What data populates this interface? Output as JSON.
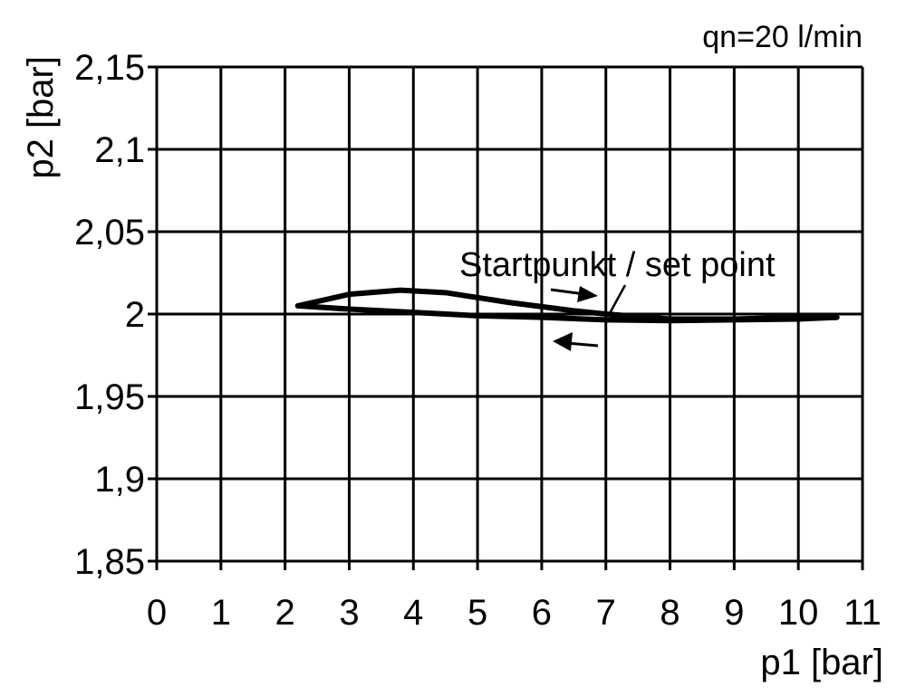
{
  "chart_data": {
    "type": "line",
    "annotation_top": "qn=20 l/min",
    "xlabel": "p1 [bar]",
    "ylabel": "p2 [bar]",
    "xlim": [
      0,
      11
    ],
    "ylim": [
      1.85,
      2.15
    ],
    "xticks": [
      0,
      1,
      2,
      3,
      4,
      5,
      6,
      7,
      8,
      9,
      10,
      11
    ],
    "xtick_labels": [
      "0",
      "1",
      "2",
      "3",
      "4",
      "5",
      "6",
      "7",
      "8",
      "9",
      "10",
      "11"
    ],
    "yticks": [
      1.85,
      1.9,
      1.95,
      2.0,
      2.05,
      2.1,
      2.15
    ],
    "ytick_labels": [
      "1,85",
      "1,9",
      "1,95",
      "2",
      "2,05",
      "2,1",
      "2,15"
    ],
    "grid": true,
    "set_point_label": "Startpunkt / set point",
    "set_point": [
      7,
      2.0
    ],
    "series": [
      {
        "direction": "increasing",
        "x": [
          2.2,
          3.0,
          3.8,
          4.5,
          5.5,
          6.5,
          7.0,
          8.0,
          9.0,
          10.0,
          10.6
        ],
        "y": [
          2.005,
          2.012,
          2.0145,
          2.013,
          2.007,
          2.002,
          2.0,
          1.997,
          1.997,
          1.998,
          1.998
        ]
      },
      {
        "direction": "decreasing",
        "x": [
          10.6,
          10.0,
          9.0,
          8.0,
          7.0,
          6.0,
          5.0,
          4.0,
          3.0,
          2.2
        ],
        "y": [
          1.998,
          1.997,
          1.9965,
          1.996,
          1.9965,
          1.998,
          1.999,
          2.001,
          2.003,
          2.005
        ]
      }
    ],
    "color": "#000000"
  }
}
